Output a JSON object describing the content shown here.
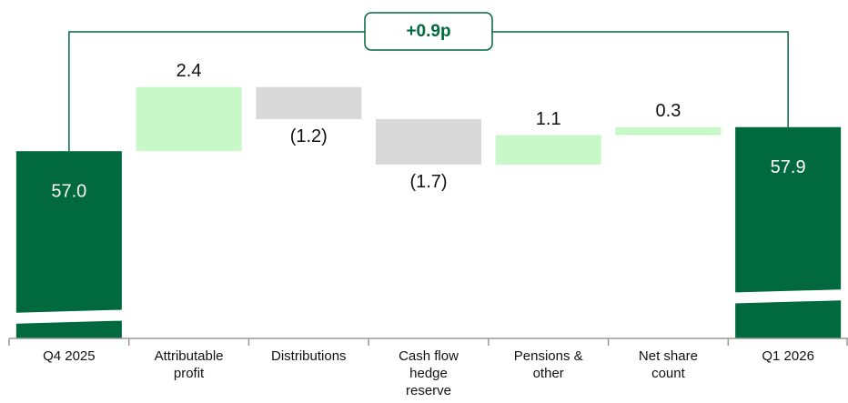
{
  "chart_data": {
    "type": "waterfall",
    "categories": [
      "Q4 2025",
      "Attributable profit",
      "Distributions",
      "Cash flow hedge reserve",
      "Pensions & other",
      "Net share count",
      "Q1 2026"
    ],
    "values": [
      57.0,
      2.4,
      -1.2,
      -1.7,
      1.1,
      0.3,
      57.9
    ],
    "value_labels": [
      "57.0",
      "2.4",
      "(1.2)",
      "(1.7)",
      "1.1",
      "0.3",
      "57.9"
    ],
    "measure": [
      "total",
      "relative",
      "relative",
      "relative",
      "relative",
      "relative",
      "total"
    ],
    "colors": {
      "total": "#00693e",
      "increase": "#c8f8c8",
      "decrease": "#d9d9d9"
    },
    "ylim": [
      50,
      60
    ],
    "annotation": "+0.9p"
  }
}
